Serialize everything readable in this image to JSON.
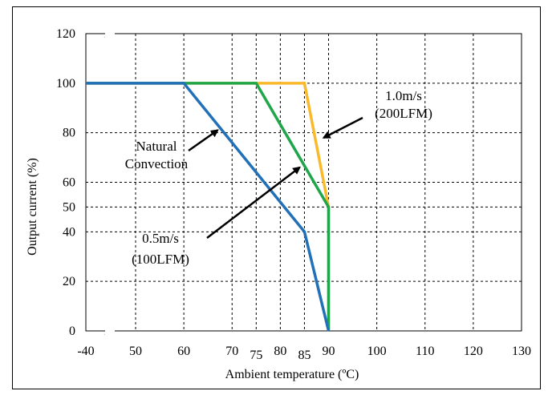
{
  "chart_data": {
    "type": "line",
    "xlabel": "Ambient temperature (ºC)",
    "ylabel": "Output current (%)",
    "xlim": [
      -40,
      130
    ],
    "ylim": [
      0,
      120
    ],
    "x_ticks": [
      "-40",
      "50",
      "60",
      "70",
      "75",
      "80",
      "85",
      "90",
      "100",
      "110",
      "120",
      "130"
    ],
    "x_tick_values": [
      -40,
      50,
      60,
      70,
      75,
      80,
      85,
      90,
      100,
      110,
      120,
      130
    ],
    "y_ticks": [
      "0",
      "20",
      "40",
      "50",
      "60",
      "80",
      "100",
      "120"
    ],
    "y_tick_values": [
      0,
      20,
      40,
      50,
      60,
      80,
      100,
      120
    ],
    "axis_break": "between -40 and 50 on x",
    "grid": true,
    "series": [
      {
        "color": "#F9B92B",
        "x": [
          -40,
          85,
          90,
          90
        ],
        "y": [
          100,
          100,
          50,
          0
        ]
      },
      {
        "color": "#1FA64B",
        "x": [
          -40,
          75,
          90,
          90
        ],
        "y": [
          100,
          100,
          50,
          0
        ]
      },
      {
        "color": "#2270B8",
        "x": [
          -40,
          60,
          85,
          90
        ],
        "y": [
          100,
          100,
          40,
          0
        ]
      }
    ],
    "annotations": [
      {
        "lines": [
          "Natural",
          "Convection"
        ],
        "arrow_to": [
          67,
          81
        ]
      },
      {
        "lines": [
          "0.5m/s",
          "(100LFM)"
        ],
        "arrow_to": [
          84,
          66
        ]
      },
      {
        "lines": [
          "1.0m/s",
          "(200LFM)"
        ],
        "arrow_to": [
          89,
          78
        ]
      }
    ]
  }
}
